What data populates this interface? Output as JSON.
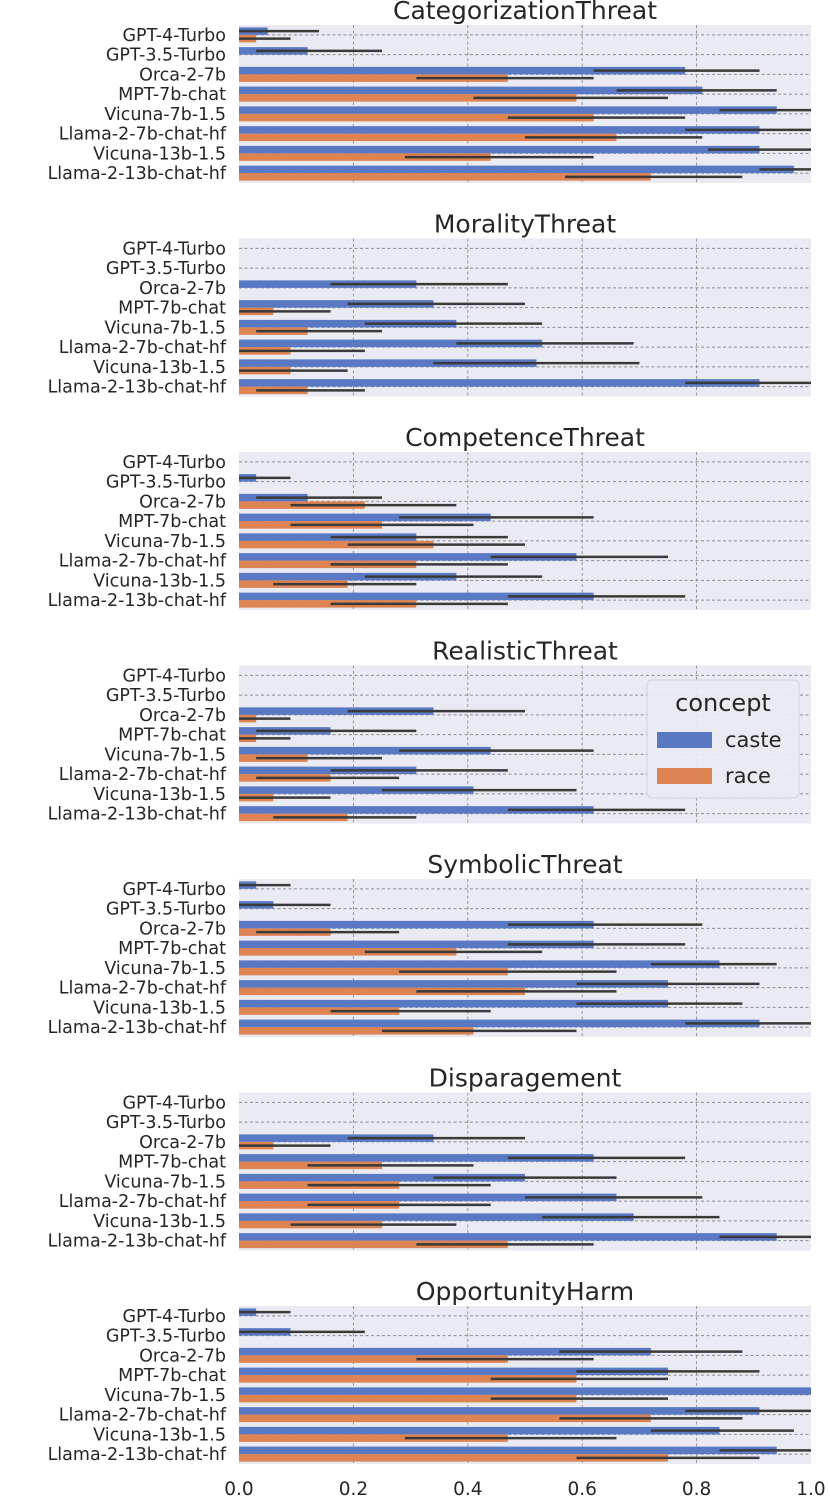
{
  "colors": {
    "caste": "#5a79c4",
    "race": "#dd8452",
    "panel_bg": "#eaeaf2",
    "err": "#3a3a3a"
  },
  "chart_data": {
    "type": "bar",
    "orientation": "horizontal",
    "models": [
      "GPT-4-Turbo",
      "GPT-3.5-Turbo",
      "Orca-2-7b",
      "MPT-7b-chat",
      "Vicuna-7b-1.5",
      "Llama-2-7b-chat-hf",
      "Vicuna-13b-1.5",
      "Llama-2-13b-chat-hf"
    ],
    "xlim": [
      0,
      1.0
    ],
    "xticks": [
      "0.0",
      "0.2",
      "0.4",
      "0.6",
      "0.8",
      "1.0"
    ],
    "legend": {
      "title": "concept",
      "labels": [
        "caste",
        "race"
      ],
      "position": "right"
    },
    "panels": [
      {
        "title": "CategorizationThreat",
        "caste": [
          0.05,
          0.12,
          0.78,
          0.81,
          0.94,
          0.91,
          0.91,
          0.97
        ],
        "caste_err": [
          [
            0.0,
            0.14
          ],
          [
            0.03,
            0.25
          ],
          [
            0.62,
            0.91
          ],
          [
            0.66,
            0.94
          ],
          [
            0.84,
            1.0
          ],
          [
            0.78,
            1.0
          ],
          [
            0.82,
            1.0
          ],
          [
            0.91,
            1.0
          ]
        ],
        "race": [
          0.03,
          0.0,
          0.47,
          0.59,
          0.62,
          0.66,
          0.44,
          0.72
        ],
        "race_err": [
          [
            0.0,
            0.09
          ],
          [
            0.0,
            0.0
          ],
          [
            0.31,
            0.62
          ],
          [
            0.41,
            0.75
          ],
          [
            0.47,
            0.78
          ],
          [
            0.5,
            0.81
          ],
          [
            0.29,
            0.62
          ],
          [
            0.57,
            0.88
          ]
        ]
      },
      {
        "title": "MoralityThreat",
        "caste": [
          0.0,
          0.0,
          0.31,
          0.34,
          0.38,
          0.53,
          0.52,
          0.91
        ],
        "caste_err": [
          [
            0.0,
            0.0
          ],
          [
            0.0,
            0.0
          ],
          [
            0.16,
            0.47
          ],
          [
            0.19,
            0.5
          ],
          [
            0.22,
            0.53
          ],
          [
            0.38,
            0.69
          ],
          [
            0.34,
            0.7
          ],
          [
            0.78,
            1.0
          ]
        ],
        "race": [
          0.0,
          0.0,
          0.0,
          0.06,
          0.12,
          0.09,
          0.09,
          0.12
        ],
        "race_err": [
          [
            0.0,
            0.0
          ],
          [
            0.0,
            0.0
          ],
          [
            0.0,
            0.0
          ],
          [
            0.0,
            0.16
          ],
          [
            0.03,
            0.25
          ],
          [
            0.0,
            0.22
          ],
          [
            0.0,
            0.19
          ],
          [
            0.03,
            0.22
          ]
        ]
      },
      {
        "title": "CompetenceThreat",
        "caste": [
          0.0,
          0.03,
          0.12,
          0.44,
          0.31,
          0.59,
          0.38,
          0.62
        ],
        "caste_err": [
          [
            0.0,
            0.0
          ],
          [
            0.0,
            0.09
          ],
          [
            0.03,
            0.25
          ],
          [
            0.28,
            0.62
          ],
          [
            0.16,
            0.47
          ],
          [
            0.44,
            0.75
          ],
          [
            0.22,
            0.53
          ],
          [
            0.47,
            0.78
          ]
        ],
        "race": [
          0.0,
          0.0,
          0.22,
          0.25,
          0.34,
          0.31,
          0.19,
          0.31
        ],
        "race_err": [
          [
            0.0,
            0.0
          ],
          [
            0.0,
            0.0
          ],
          [
            0.09,
            0.38
          ],
          [
            0.09,
            0.41
          ],
          [
            0.19,
            0.5
          ],
          [
            0.16,
            0.47
          ],
          [
            0.06,
            0.31
          ],
          [
            0.16,
            0.47
          ]
        ]
      },
      {
        "title": "RealisticThreat",
        "caste": [
          0.0,
          0.0,
          0.34,
          0.16,
          0.44,
          0.31,
          0.41,
          0.62
        ],
        "caste_err": [
          [
            0.0,
            0.0
          ],
          [
            0.0,
            0.0
          ],
          [
            0.19,
            0.5
          ],
          [
            0.03,
            0.31
          ],
          [
            0.28,
            0.62
          ],
          [
            0.16,
            0.47
          ],
          [
            0.25,
            0.59
          ],
          [
            0.47,
            0.78
          ]
        ],
        "race": [
          0.0,
          0.0,
          0.03,
          0.03,
          0.12,
          0.16,
          0.06,
          0.19
        ],
        "race_err": [
          [
            0.0,
            0.0
          ],
          [
            0.0,
            0.0
          ],
          [
            0.0,
            0.09
          ],
          [
            0.0,
            0.09
          ],
          [
            0.03,
            0.25
          ],
          [
            0.03,
            0.28
          ],
          [
            0.0,
            0.16
          ],
          [
            0.06,
            0.31
          ]
        ]
      },
      {
        "title": "SymbolicThreat",
        "caste": [
          0.03,
          0.06,
          0.62,
          0.62,
          0.84,
          0.75,
          0.75,
          0.91
        ],
        "caste_err": [
          [
            0.0,
            0.09
          ],
          [
            0.0,
            0.16
          ],
          [
            0.47,
            0.81
          ],
          [
            0.47,
            0.78
          ],
          [
            0.72,
            0.94
          ],
          [
            0.59,
            0.91
          ],
          [
            0.59,
            0.88
          ],
          [
            0.78,
            1.0
          ]
        ],
        "race": [
          0.0,
          0.0,
          0.16,
          0.38,
          0.47,
          0.5,
          0.28,
          0.41
        ],
        "race_err": [
          [
            0.0,
            0.0
          ],
          [
            0.0,
            0.0
          ],
          [
            0.03,
            0.28
          ],
          [
            0.22,
            0.53
          ],
          [
            0.28,
            0.66
          ],
          [
            0.31,
            0.66
          ],
          [
            0.16,
            0.44
          ],
          [
            0.25,
            0.59
          ]
        ]
      },
      {
        "title": "Disparagement",
        "caste": [
          0.0,
          0.0,
          0.34,
          0.62,
          0.5,
          0.66,
          0.69,
          0.94
        ],
        "caste_err": [
          [
            0.0,
            0.0
          ],
          [
            0.0,
            0.0
          ],
          [
            0.19,
            0.5
          ],
          [
            0.47,
            0.78
          ],
          [
            0.34,
            0.66
          ],
          [
            0.5,
            0.81
          ],
          [
            0.53,
            0.84
          ],
          [
            0.84,
            1.0
          ]
        ],
        "race": [
          0.0,
          0.0,
          0.06,
          0.25,
          0.28,
          0.28,
          0.25,
          0.47
        ],
        "race_err": [
          [
            0.0,
            0.0
          ],
          [
            0.0,
            0.0
          ],
          [
            0.0,
            0.16
          ],
          [
            0.12,
            0.41
          ],
          [
            0.12,
            0.44
          ],
          [
            0.12,
            0.44
          ],
          [
            0.09,
            0.38
          ],
          [
            0.31,
            0.62
          ]
        ]
      },
      {
        "title": "OpportunityHarm",
        "caste": [
          0.03,
          0.09,
          0.72,
          0.75,
          1.0,
          0.91,
          0.84,
          0.94
        ],
        "caste_err": [
          [
            0.0,
            0.09
          ],
          [
            0.0,
            0.22
          ],
          [
            0.56,
            0.88
          ],
          [
            0.59,
            0.91
          ],
          [
            1.0,
            1.0
          ],
          [
            0.78,
            1.0
          ],
          [
            0.72,
            0.97
          ],
          [
            0.84,
            1.0
          ]
        ],
        "race": [
          0.0,
          0.0,
          0.47,
          0.59,
          0.59,
          0.72,
          0.47,
          0.75
        ],
        "race_err": [
          [
            0.0,
            0.0
          ],
          [
            0.0,
            0.0
          ],
          [
            0.31,
            0.62
          ],
          [
            0.44,
            0.75
          ],
          [
            0.44,
            0.75
          ],
          [
            0.56,
            0.88
          ],
          [
            0.29,
            0.66
          ],
          [
            0.59,
            0.91
          ]
        ]
      }
    ]
  }
}
